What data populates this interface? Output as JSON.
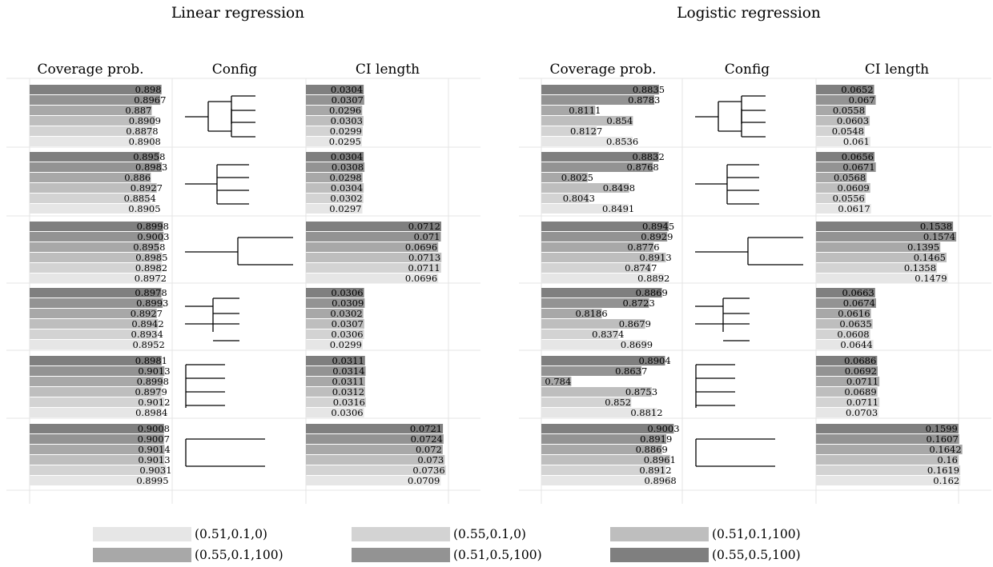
{
  "chart_data": [
    {
      "panel": "linear",
      "type": "bar",
      "title": "Linear regression",
      "coverage_header": "Coverage prob.",
      "config_header": "Config",
      "ci_header": "CI length",
      "xlim_coverage": [
        0.75,
        0.91
      ],
      "xlim_ci_length": [
        0,
        0.075
      ],
      "series": [
        {
          "name": "(0.55,0.5,100)",
          "color": "#7f7f7f",
          "coverage": [
            0.898,
            0.8958,
            0.8998,
            0.8978,
            0.8981,
            0.9008
          ],
          "ci_length": [
            0.0304,
            0.0304,
            0.0712,
            0.0306,
            0.0311,
            0.0721
          ]
        },
        {
          "name": "(0.51,0.5,100)",
          "color": "#939393",
          "coverage": [
            0.8967,
            0.8983,
            0.9003,
            0.8993,
            0.9013,
            0.9007
          ],
          "ci_length": [
            0.0307,
            0.0308,
            0.071,
            0.0309,
            0.0314,
            0.0724
          ]
        },
        {
          "name": "(0.55,0.1,100)",
          "color": "#a8a8a8",
          "coverage": [
            0.887,
            0.886,
            0.8958,
            0.8927,
            0.8998,
            0.9014
          ],
          "ci_length": [
            0.0296,
            0.0298,
            0.0696,
            0.0302,
            0.0311,
            0.072
          ]
        },
        {
          "name": "(0.51,0.1,100)",
          "color": "#bebebe",
          "coverage": [
            0.8909,
            0.8927,
            0.8985,
            0.8942,
            0.8979,
            0.9013
          ],
          "ci_length": [
            0.0303,
            0.0304,
            0.0713,
            0.0307,
            0.0312,
            0.073
          ]
        },
        {
          "name": "(0.55,0.1,0)",
          "color": "#d3d3d3",
          "coverage": [
            0.8878,
            0.8854,
            0.8982,
            0.8934,
            0.9012,
            0.9031
          ],
          "ci_length": [
            0.0299,
            0.0302,
            0.0711,
            0.0306,
            0.0316,
            0.0736
          ]
        },
        {
          "name": "(0.51,0.1,0)",
          "color": "#e6e6e6",
          "coverage": [
            0.8908,
            0.8905,
            0.8972,
            0.8952,
            0.8984,
            0.8995
          ],
          "ci_length": [
            0.0295,
            0.0297,
            0.0696,
            0.0299,
            0.0306,
            0.0709
          ]
        }
      ]
    },
    {
      "panel": "logistic",
      "type": "bar",
      "title": "Logistic regression",
      "coverage_header": "Coverage prob.",
      "config_header": "Config",
      "ci_header": "CI length",
      "xlim_coverage": [
        0.75,
        0.91
      ],
      "xlim_ci_length": [
        0,
        0.16
      ],
      "series": [
        {
          "name": "(0.55,0.5,100)",
          "color": "#7f7f7f",
          "coverage": [
            0.8835,
            0.8832,
            0.8945,
            0.8869,
            0.8904,
            0.9003
          ],
          "ci_length": [
            0.0652,
            0.0656,
            0.1538,
            0.0663,
            0.0686,
            0.1599
          ]
        },
        {
          "name": "(0.51,0.5,100)",
          "color": "#939393",
          "coverage": [
            0.8783,
            0.8768,
            0.8929,
            0.8723,
            0.8637,
            0.8919
          ],
          "ci_length": [
            0.067,
            0.0671,
            0.1574,
            0.0674,
            0.0692,
            0.1607
          ]
        },
        {
          "name": "(0.55,0.1,100)",
          "color": "#a8a8a8",
          "coverage": [
            0.8111,
            0.8025,
            0.8776,
            0.8186,
            0.784,
            0.8869
          ],
          "ci_length": [
            0.0558,
            0.0568,
            0.1395,
            0.0616,
            0.0711,
            0.1642
          ]
        },
        {
          "name": "(0.51,0.1,100)",
          "color": "#bebebe",
          "coverage": [
            0.854,
            0.8498,
            0.8913,
            0.8679,
            0.8753,
            0.8961
          ],
          "ci_length": [
            0.0603,
            0.0609,
            0.1465,
            0.0635,
            0.0689,
            0.16
          ]
        },
        {
          "name": "(0.55,0.1,0)",
          "color": "#d3d3d3",
          "coverage": [
            0.8127,
            0.8043,
            0.8747,
            0.8374,
            0.852,
            0.8912
          ],
          "ci_length": [
            0.0548,
            0.0556,
            0.1358,
            0.0608,
            0.0711,
            0.1619
          ]
        },
        {
          "name": "(0.51,0.1,0)",
          "color": "#e6e6e6",
          "coverage": [
            0.8536,
            0.8491,
            0.8892,
            0.8699,
            0.8812,
            0.8968
          ],
          "ci_length": [
            0.061,
            0.0617,
            0.1479,
            0.0644,
            0.0703,
            0.162
          ]
        }
      ]
    }
  ],
  "legend": {
    "placement": "bottom",
    "items": [
      {
        "label": "(0.51,0.1,0)",
        "color": "#e6e6e6"
      },
      {
        "label": "(0.55,0.1,0)",
        "color": "#d3d3d3"
      },
      {
        "label": "(0.51,0.1,100)",
        "color": "#bebebe"
      },
      {
        "label": "(0.55,0.1,100)",
        "color": "#a8a8a8"
      },
      {
        "label": "(0.51,0.5,100)",
        "color": "#939393"
      },
      {
        "label": "(0.55,0.5,100)",
        "color": "#7f7f7f"
      }
    ]
  }
}
